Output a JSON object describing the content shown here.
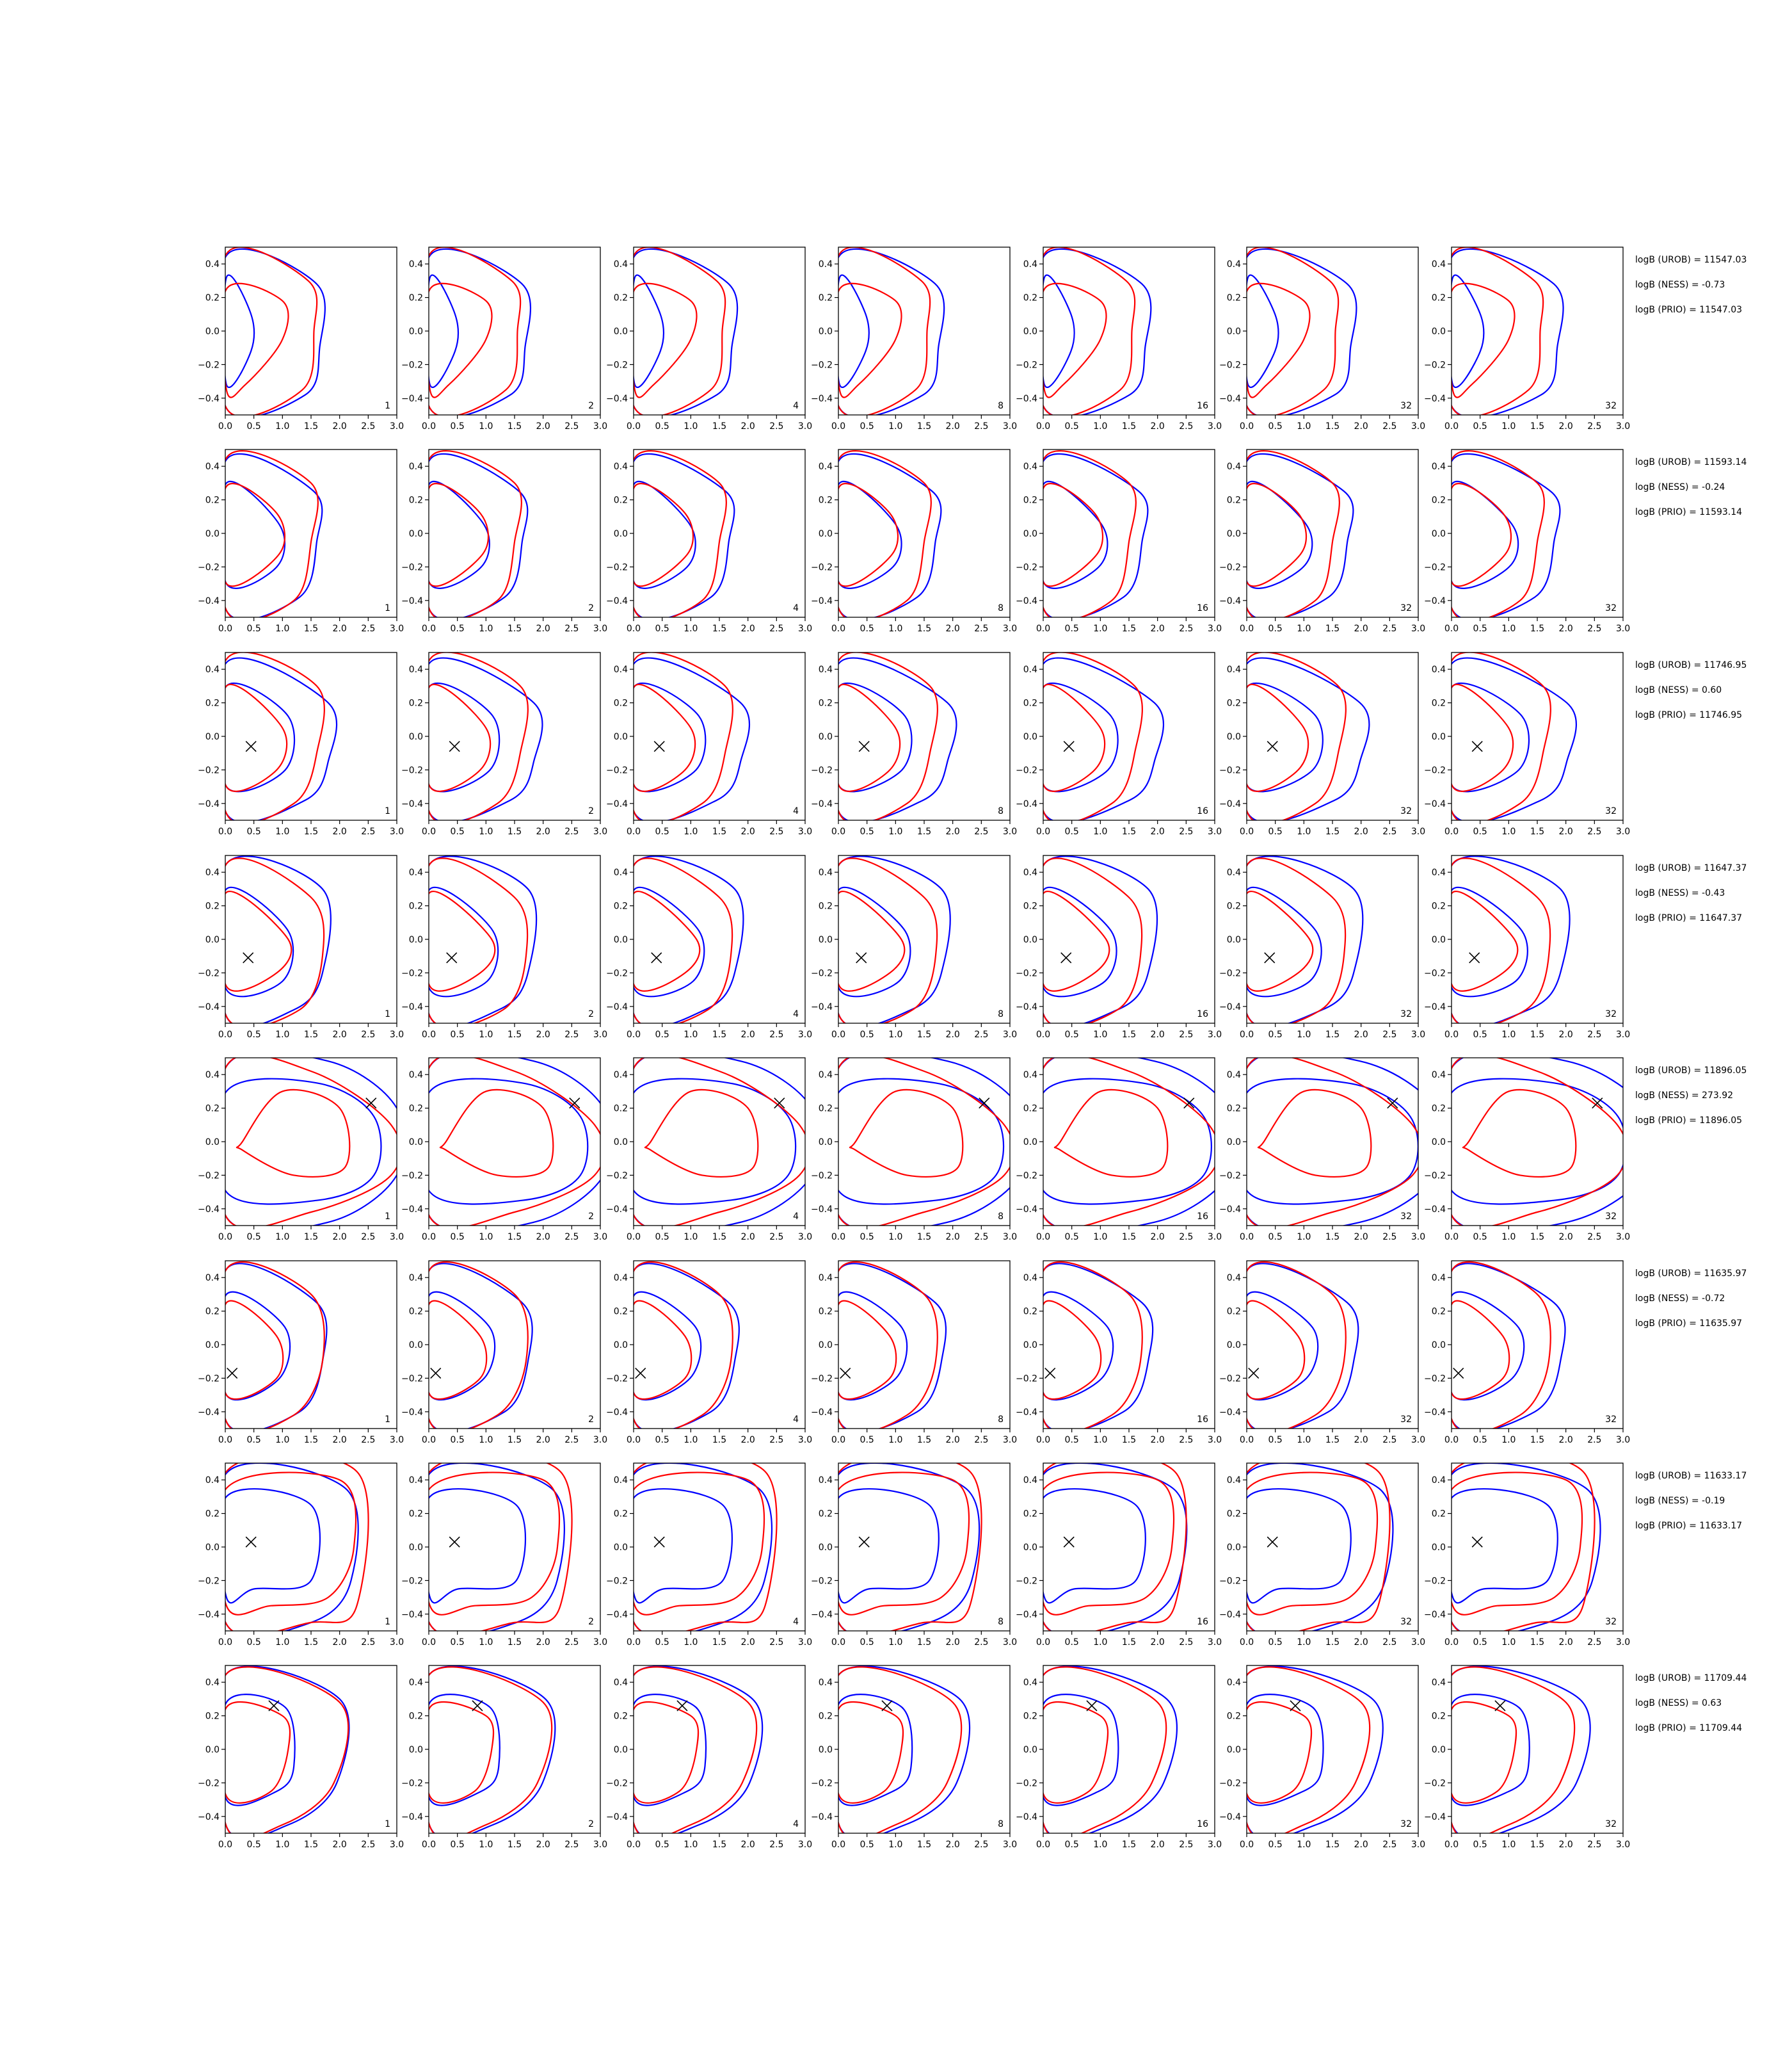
{
  "chart_data": {
    "type": "contour-grid",
    "description": "Grid of 8 rows x 7 columns of contour plots; blue and red closed contours; row-level logB annotations.",
    "columns": [
      "1",
      "2",
      "4",
      "8",
      "16",
      "32",
      "32"
    ],
    "xlim": [
      0.0,
      3.0
    ],
    "ylim": [
      -0.5,
      0.5
    ],
    "xticks": [
      "0.0",
      "0.5",
      "1.0",
      "1.5",
      "2.0",
      "2.5",
      "3.0"
    ],
    "yticks": [
      "0.4",
      "0.2",
      "0.0",
      "−0.2",
      "−0.4"
    ],
    "ytick_values": [
      0.4,
      0.2,
      0.0,
      -0.2,
      -0.4
    ],
    "xtick_values": [
      0.0,
      0.5,
      1.0,
      1.5,
      2.0,
      2.5,
      3.0
    ],
    "colors": {
      "blue": "#0000ff",
      "red": "#ff0000",
      "marker": "#000000",
      "axes": "#000000"
    },
    "rows": [
      {
        "marker": null,
        "annot": [
          "logB (UROB) = 11547.03",
          "logB (NESS) = -0.73",
          "logB (PRIO) = 11547.03"
        ],
        "blue": [
          [
            [
              0.02,
              0.32
            ],
            [
              0.45,
              0.1
            ],
            [
              0.45,
              -0.12
            ],
            [
              0.02,
              -0.32
            ]
          ],
          [
            [
              0.02,
              0.45
            ],
            [
              1.6,
              0.28
            ],
            [
              1.65,
              -0.1
            ],
            [
              1.4,
              -0.38
            ],
            [
              0.02,
              -0.46
            ]
          ]
        ],
        "red": [
          [
            [
              0.02,
              0.25
            ],
            [
              1.0,
              0.18
            ],
            [
              1.0,
              -0.05
            ],
            [
              0.35,
              -0.32
            ],
            [
              0.02,
              -0.35
            ]
          ],
          [
            [
              0.02,
              0.46
            ],
            [
              1.45,
              0.3
            ],
            [
              1.55,
              0.0
            ],
            [
              1.35,
              -0.35
            ],
            [
              0.02,
              -0.46
            ]
          ]
        ]
      },
      {
        "marker": null,
        "annot": [
          "logB (UROB) = 11593.14",
          "logB (NESS) = -0.24",
          "logB (PRIO) = 11593.14"
        ],
        "blue": [
          [
            [
              0.02,
              0.3
            ],
            [
              0.95,
              0.05
            ],
            [
              0.9,
              -0.2
            ],
            [
              0.02,
              -0.3
            ]
          ],
          [
            [
              0.02,
              0.44
            ],
            [
              1.55,
              0.25
            ],
            [
              1.6,
              -0.05
            ],
            [
              1.3,
              -0.38
            ],
            [
              0.02,
              -0.46
            ]
          ]
        ],
        "red": [
          [
            [
              0.02,
              0.28
            ],
            [
              0.9,
              0.12
            ],
            [
              0.95,
              -0.12
            ],
            [
              0.02,
              -0.3
            ]
          ],
          [
            [
              0.02,
              0.45
            ],
            [
              1.5,
              0.3
            ],
            [
              1.5,
              -0.05
            ],
            [
              1.2,
              -0.4
            ],
            [
              0.02,
              -0.46
            ]
          ]
        ]
      },
      {
        "marker": [
          0.45,
          -0.06
        ],
        "annot": [
          "logB (UROB) = 11746.95",
          "logB (NESS) = 0.60",
          "logB (PRIO) = 11746.95"
        ],
        "blue": [
          [
            [
              0.02,
              0.3
            ],
            [
              1.1,
              0.12
            ],
            [
              1.05,
              -0.2
            ],
            [
              0.02,
              -0.3
            ]
          ],
          [
            [
              0.02,
              0.44
            ],
            [
              1.8,
              0.2
            ],
            [
              1.8,
              -0.15
            ],
            [
              1.4,
              -0.38
            ],
            [
              0.02,
              -0.46
            ]
          ]
        ],
        "red": [
          [
            [
              0.02,
              0.3
            ],
            [
              1.0,
              0.05
            ],
            [
              0.9,
              -0.2
            ],
            [
              0.02,
              -0.3
            ]
          ],
          [
            [
              0.02,
              0.46
            ],
            [
              1.6,
              0.3
            ],
            [
              1.6,
              -0.1
            ],
            [
              1.2,
              -0.4
            ],
            [
              0.02,
              -0.46
            ]
          ]
        ]
      },
      {
        "marker": [
          0.4,
          -0.11
        ],
        "annot": [
          "logB (UROB) = 11647.37",
          "logB (NESS) = -0.43",
          "logB (PRIO) = 11647.37"
        ],
        "blue": [
          [
            [
              0.02,
              0.3
            ],
            [
              1.1,
              0.05
            ],
            [
              1.0,
              -0.25
            ],
            [
              0.02,
              -0.3
            ]
          ],
          [
            [
              0.02,
              0.45
            ],
            [
              1.7,
              0.3
            ],
            [
              1.7,
              -0.2
            ],
            [
              1.2,
              -0.42
            ],
            [
              0.02,
              -0.46
            ]
          ]
        ],
        "red": [
          [
            [
              0.02,
              0.28
            ],
            [
              1.1,
              0.0
            ],
            [
              0.9,
              -0.2
            ],
            [
              0.02,
              -0.28
            ]
          ],
          [
            [
              0.02,
              0.45
            ],
            [
              1.5,
              0.25
            ],
            [
              1.7,
              -0.1
            ],
            [
              1.3,
              -0.42
            ],
            [
              0.02,
              -0.46
            ]
          ]
        ]
      },
      {
        "marker": [
          2.55,
          0.23
        ],
        "annot": [
          "logB (UROB) = 11896.05",
          "logB (NESS) = 273.92",
          "logB (PRIO) = 11896.05"
        ],
        "blue": [
          [
            [
              0.02,
              0.3
            ],
            [
              1.6,
              0.35
            ],
            [
              2.6,
              0.15
            ],
            [
              2.6,
              -0.2
            ],
            [
              1.6,
              -0.35
            ],
            [
              0.02,
              -0.3
            ]
          ],
          [
            [
              0.02,
              0.45
            ],
            [
              1.8,
              0.48
            ],
            [
              3.0,
              0.2
            ],
            [
              3.0,
              -0.2
            ],
            [
              1.8,
              -0.48
            ],
            [
              0.02,
              -0.45
            ]
          ]
        ],
        "red": [
          [
            [
              0.3,
              0.0
            ],
            [
              1.0,
              0.3
            ],
            [
              2.0,
              0.2
            ],
            [
              2.1,
              -0.15
            ],
            [
              1.2,
              -0.2
            ],
            [
              0.3,
              -0.05
            ]
          ],
          [
            [
              0.02,
              0.45
            ],
            [
              1.5,
              0.42
            ],
            [
              2.9,
              0.1
            ],
            [
              2.9,
              -0.2
            ],
            [
              1.5,
              -0.42
            ],
            [
              0.02,
              -0.45
            ]
          ]
        ]
      },
      {
        "marker": [
          0.12,
          -0.17
        ],
        "annot": [
          "logB (UROB) = 11635.97",
          "logB (NESS) = -0.72",
          "logB (PRIO) = 11635.97"
        ],
        "blue": [
          [
            [
              0.02,
              0.3
            ],
            [
              1.05,
              0.1
            ],
            [
              0.95,
              -0.2
            ],
            [
              0.02,
              -0.3
            ]
          ],
          [
            [
              0.02,
              0.45
            ],
            [
              1.6,
              0.25
            ],
            [
              1.7,
              -0.1
            ],
            [
              1.3,
              -0.4
            ],
            [
              0.02,
              -0.46
            ]
          ]
        ],
        "red": [
          [
            [
              0.02,
              0.25
            ],
            [
              0.9,
              0.05
            ],
            [
              0.9,
              -0.2
            ],
            [
              0.02,
              -0.3
            ]
          ],
          [
            [
              0.02,
              0.45
            ],
            [
              1.5,
              0.3
            ],
            [
              1.7,
              -0.1
            ],
            [
              1.2,
              -0.42
            ],
            [
              0.02,
              -0.46
            ]
          ]
        ]
      },
      {
        "marker": [
          0.45,
          0.03
        ],
        "annot": [
          "logB (UROB) = 11633.17",
          "logB (NESS) = -0.19",
          "logB (PRIO) = 11633.17"
        ],
        "blue": [
          [
            [
              0.02,
              0.3
            ],
            [
              1.5,
              0.25
            ],
            [
              1.5,
              -0.2
            ],
            [
              0.5,
              -0.25
            ],
            [
              0.02,
              -0.3
            ]
          ],
          [
            [
              0.02,
              0.44
            ],
            [
              2.1,
              0.35
            ],
            [
              2.2,
              -0.2
            ],
            [
              1.5,
              -0.45
            ],
            [
              0.02,
              -0.46
            ]
          ]
        ],
        "red": [
          [
            [
              0.02,
              0.35
            ],
            [
              2.0,
              0.4
            ],
            [
              2.25,
              0.0
            ],
            [
              1.8,
              -0.3
            ],
            [
              0.8,
              -0.35
            ],
            [
              0.02,
              -0.35
            ]
          ],
          [
            [
              0.02,
              0.45
            ],
            [
              2.3,
              0.45
            ],
            [
              2.3,
              -0.35
            ],
            [
              1.5,
              -0.45
            ],
            [
              0.02,
              -0.46
            ]
          ]
        ]
      },
      {
        "marker": [
          0.85,
          0.26
        ],
        "annot": [
          "logB (UROB) = 11709.44",
          "logB (NESS) = 0.63",
          "logB (PRIO) = 11709.44"
        ],
        "blue": [
          [
            [
              0.02,
              0.28
            ],
            [
              1.05,
              0.25
            ],
            [
              1.2,
              -0.1
            ],
            [
              0.9,
              -0.25
            ],
            [
              0.02,
              -0.3
            ]
          ],
          [
            [
              0.02,
              0.45
            ],
            [
              2.0,
              0.3
            ],
            [
              1.95,
              -0.2
            ],
            [
              1.1,
              -0.45
            ],
            [
              0.02,
              -0.46
            ]
          ]
        ],
        "red": [
          [
            [
              0.02,
              0.25
            ],
            [
              1.0,
              0.2
            ],
            [
              1.1,
              0.0
            ],
            [
              0.8,
              -0.25
            ],
            [
              0.02,
              -0.28
            ]
          ],
          [
            [
              0.02,
              0.45
            ],
            [
              2.0,
              0.28
            ],
            [
              1.9,
              -0.2
            ],
            [
              1.0,
              -0.45
            ],
            [
              0.02,
              -0.46
            ]
          ]
        ]
      }
    ]
  }
}
